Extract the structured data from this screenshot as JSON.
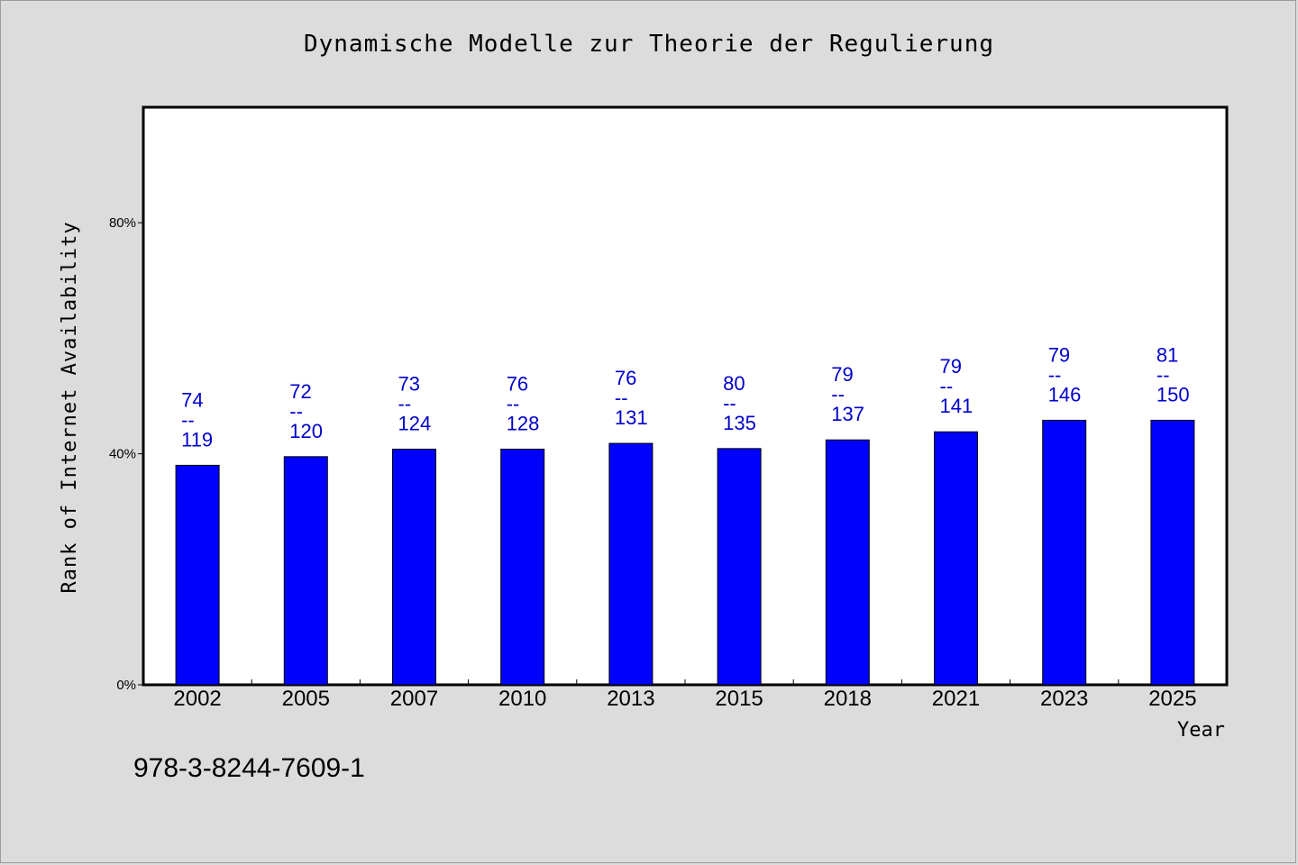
{
  "chart_data": {
    "type": "bar",
    "title": "Dynamische Modelle zur Theorie der Regulierung",
    "xlabel": "Year",
    "ylabel": "Rank of Internet Availability",
    "categories": [
      "2002",
      "2005",
      "2007",
      "2010",
      "2013",
      "2015",
      "2018",
      "2021",
      "2023",
      "2025"
    ],
    "values": [
      38,
      39.5,
      40.8,
      40.8,
      41.8,
      40.9,
      42.4,
      43.8,
      45.8,
      45.8
    ],
    "data_labels": [
      {
        "top": "74",
        "sep": "--",
        "bottom": "119"
      },
      {
        "top": "72",
        "sep": "--",
        "bottom": "120"
      },
      {
        "top": "73",
        "sep": "--",
        "bottom": "124"
      },
      {
        "top": "76",
        "sep": "--",
        "bottom": "128"
      },
      {
        "top": "76",
        "sep": "--",
        "bottom": "131"
      },
      {
        "top": "80",
        "sep": "--",
        "bottom": "135"
      },
      {
        "top": "79",
        "sep": "--",
        "bottom": "137"
      },
      {
        "top": "79",
        "sep": "--",
        "bottom": "141"
      },
      {
        "top": "79",
        "sep": "--",
        "bottom": "146"
      },
      {
        "top": "81",
        "sep": "--",
        "bottom": "150"
      }
    ],
    "yticks": [
      0,
      40,
      80
    ],
    "ytick_labels": [
      "0%",
      "40%",
      "80%"
    ],
    "ylim": [
      0,
      100
    ],
    "bar_color": "#0000ff",
    "label_color": "#0000cc",
    "grid": false,
    "legend": "none"
  },
  "footer": {
    "isbn": "978-3-8244-7609-1"
  }
}
